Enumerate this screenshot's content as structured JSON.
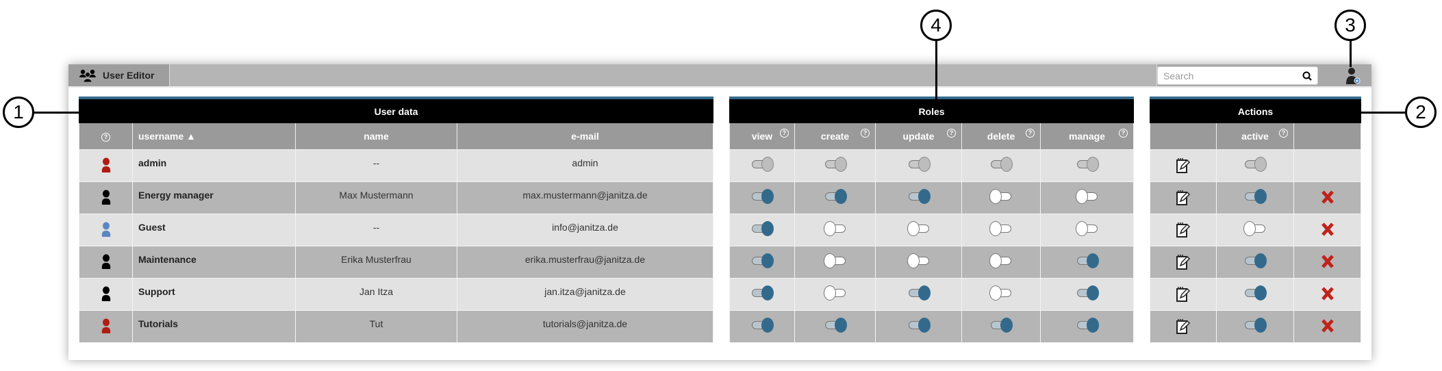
{
  "toolbar": {
    "title": "User Editor",
    "search_placeholder": "Search"
  },
  "callouts": [
    "1",
    "2",
    "3",
    "4"
  ],
  "colors": {
    "accent": "#336a8c",
    "admin_icon": "#b01c14",
    "guest_icon": "#5b87c0",
    "delete": "#c0231b"
  },
  "user_data": {
    "title": "User data",
    "columns": [
      "?",
      "username",
      "name",
      "e-mail"
    ],
    "sort": "username ascending"
  },
  "roles": {
    "title": "Roles",
    "columns": [
      "view",
      "create",
      "update",
      "delete",
      "manage"
    ]
  },
  "actions": {
    "title": "Actions",
    "columns": [
      "",
      "active",
      ""
    ]
  },
  "users": [
    {
      "username": "admin",
      "name": "--",
      "email": "admin",
      "icon": "admin",
      "roles": [
        "disabled",
        "disabled",
        "disabled",
        "disabled",
        "disabled"
      ],
      "active": "disabled",
      "deletable": false
    },
    {
      "username": "Energy manager",
      "name": "Max Mustermann",
      "email": "max.mustermann@janitza.de",
      "icon": "user",
      "roles": [
        "on",
        "on",
        "on",
        "off",
        "off"
      ],
      "active": "on",
      "deletable": true
    },
    {
      "username": "Guest",
      "name": "--",
      "email": "info@janitza.de",
      "icon": "guest",
      "roles": [
        "on",
        "off",
        "off",
        "off",
        "off"
      ],
      "active": "off",
      "deletable": true
    },
    {
      "username": "Maintenance",
      "name": "Erika Musterfrau",
      "email": "erika.musterfrau@janitza.de",
      "icon": "user",
      "roles": [
        "on",
        "off",
        "off",
        "off",
        "on"
      ],
      "active": "on",
      "deletable": true
    },
    {
      "username": "Support",
      "name": "Jan Itza",
      "email": "jan.itza@janitza.de",
      "icon": "user",
      "roles": [
        "on",
        "off",
        "on",
        "off",
        "on"
      ],
      "active": "on",
      "deletable": true
    },
    {
      "username": "Tutorials",
      "name": "Tut",
      "email": "tutorials@janitza.de",
      "icon": "admin",
      "roles": [
        "on",
        "on",
        "on",
        "on",
        "on"
      ],
      "active": "on",
      "deletable": true
    }
  ]
}
